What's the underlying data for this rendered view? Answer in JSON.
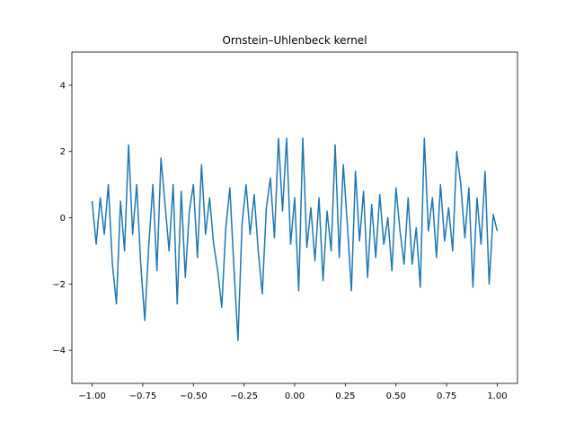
{
  "chart_data": {
    "type": "line",
    "title": "Ornstein–Uhlenbeck kernel",
    "x": [
      -1,
      -0.98,
      -0.96,
      -0.94,
      -0.92,
      -0.9,
      -0.88,
      -0.86,
      -0.84,
      -0.82,
      -0.8,
      -0.78,
      -0.76,
      -0.74,
      -0.72,
      -0.7,
      -0.68,
      -0.66,
      -0.64,
      -0.62,
      -0.6,
      -0.58,
      -0.56,
      -0.54,
      -0.52,
      -0.5,
      -0.48,
      -0.46,
      -0.44,
      -0.42,
      -0.4,
      -0.38,
      -0.36,
      -0.34,
      -0.32,
      -0.3,
      -0.28,
      -0.26,
      -0.24,
      -0.22,
      -0.2,
      -0.18,
      -0.16,
      -0.14,
      -0.12,
      -0.1,
      -0.08,
      -0.06,
      -0.04,
      -0.02,
      0,
      0.02,
      0.04,
      0.06,
      0.08,
      0.1,
      0.12,
      0.14,
      0.16,
      0.18,
      0.2,
      0.22,
      0.24,
      0.26,
      0.28,
      0.3,
      0.32,
      0.34,
      0.36,
      0.38,
      0.4,
      0.42,
      0.44,
      0.46,
      0.48,
      0.5,
      0.52,
      0.54,
      0.56,
      0.58,
      0.6,
      0.62,
      0.64,
      0.66,
      0.68,
      0.7,
      0.72,
      0.74,
      0.76,
      0.78,
      0.8,
      0.82,
      0.84,
      0.86,
      0.88,
      0.9,
      0.92,
      0.94,
      0.96,
      0.98,
      1
    ],
    "series": [
      {
        "color": "#1f77b4",
        "values": [
          0.5,
          -0.8,
          0.6,
          -0.5,
          1.0,
          -1.4,
          -2.6,
          0.5,
          -1.0,
          2.2,
          -0.5,
          1.0,
          -1.4,
          -3.1,
          -0.8,
          1.0,
          -1.6,
          1.8,
          0.4,
          -1.0,
          1.0,
          -2.6,
          0.8,
          -1.8,
          0.2,
          1.0,
          -1.2,
          1.6,
          -0.5,
          0.6,
          -0.8,
          -1.6,
          -2.7,
          -0.3,
          0.9,
          -1.5,
          -3.7,
          -0.2,
          1.0,
          -0.5,
          0.7,
          -1.0,
          -2.3,
          0.3,
          1.2,
          -0.6,
          2.4,
          0.2,
          2.4,
          -0.8,
          0.6,
          -2.2,
          2.4,
          -0.9,
          0.3,
          -1.3,
          0.6,
          -1.9,
          0.2,
          -1.0,
          2.2,
          -1.2,
          1.6,
          -0.2,
          -2.2,
          1.4,
          -0.7,
          0.8,
          -1.8,
          0.4,
          -1.2,
          0.7,
          -0.8,
          0.0,
          -1.6,
          0.9,
          -0.4,
          -1.4,
          0.6,
          -1.4,
          -0.3,
          -2.1,
          2.4,
          -0.4,
          0.6,
          -1.2,
          1.0,
          -0.7,
          0.3,
          -1.0,
          2.0,
          1.0,
          -0.6,
          0.9,
          -2.1,
          0.6,
          -0.8,
          1.4,
          -2.0,
          0.1,
          -0.4
        ]
      }
    ],
    "xlim": [
      -1.1,
      1.1
    ],
    "ylim": [
      -5,
      5
    ],
    "xticks": [
      {
        "value": -1,
        "label": "−1.00"
      },
      {
        "value": -0.75,
        "label": "−0.75"
      },
      {
        "value": -0.5,
        "label": "−0.50"
      },
      {
        "value": -0.25,
        "label": "−0.25"
      },
      {
        "value": 0,
        "label": "0.00"
      },
      {
        "value": 0.25,
        "label": "0.25"
      },
      {
        "value": 0.5,
        "label": "0.50"
      },
      {
        "value": 0.75,
        "label": "0.75"
      },
      {
        "value": 1,
        "label": "1.00"
      }
    ],
    "yticks": [
      {
        "value": -4,
        "label": "−4"
      },
      {
        "value": -2,
        "label": "−2"
      },
      0,
      2,
      4
    ]
  }
}
